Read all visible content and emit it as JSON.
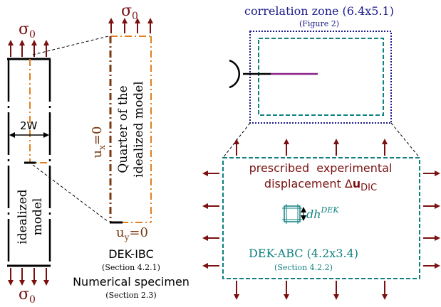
{
  "colors": {
    "load": "#7a1010",
    "bc": "#7a3a10",
    "zone": "#1a1a8c",
    "teal": "#108080",
    "orange": "#e08020",
    "crack": "#8a208a",
    "black": "#000000"
  },
  "left_model": {
    "sigma_top": "σ",
    "sigma_top_sub": "0",
    "sigma_bottom": "σ",
    "sigma_bottom_sub": "0",
    "width_label": "2W",
    "model_line1": "idealized",
    "model_line2": "model"
  },
  "quarter_model": {
    "sigma_top": "σ",
    "sigma_top_sub": "0",
    "ux_label": "u",
    "ux_sub": "x",
    "ux_eq": "=0",
    "uy_label": "u",
    "uy_sub": "y",
    "uy_eq": "=0",
    "model_line1": "Quarter of the",
    "model_line2": "idealized model"
  },
  "captions": {
    "dek_ibc": "DEK-IBC",
    "dek_ibc_section": "(Section 4.2.1)",
    "specimen": "Numerical specimen",
    "specimen_section": "(Section 2.3)"
  },
  "correlation": {
    "title": "correlation zone (6.4x5.1)",
    "subtitle": "(Figure 2)"
  },
  "dek_abc": {
    "prescribed_line1": "prescribed  experimental",
    "prescribed_line2": "displacement Δ",
    "prescribed_u": "u",
    "prescribed_sub": "DIC",
    "dh": "dh",
    "dh_sup": "DEK",
    "title": "DEK-ABC (4.2x3.4)",
    "section": "(Section 4.2.2)"
  }
}
